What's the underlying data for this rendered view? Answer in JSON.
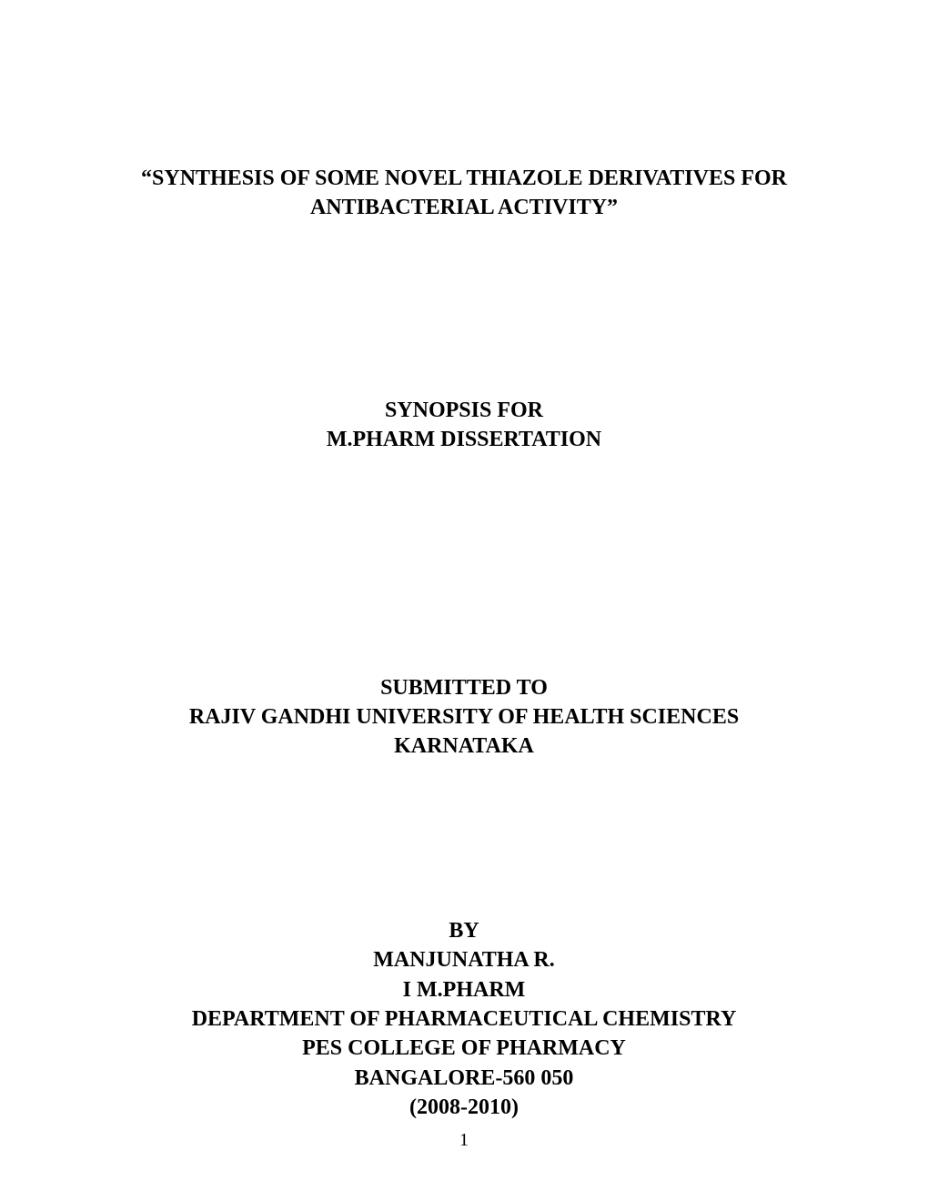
{
  "title": {
    "line1": "“SYNTHESIS OF SOME NOVEL THIAZOLE DERIVATIVES FOR",
    "line2": "ANTIBACTERIAL ACTIVITY”"
  },
  "synopsis": {
    "line1": "SYNOPSIS FOR",
    "line2": "M.PHARM DISSERTATION"
  },
  "submitted": {
    "line1": "SUBMITTED TO",
    "line2": "RAJIV GANDHI UNIVERSITY OF HEALTH SCIENCES",
    "line3": "KARNATAKA"
  },
  "author": {
    "line1": "BY",
    "line2": "MANJUNATHA R.",
    "line3": "I M.PHARM",
    "line4": "DEPARTMENT OF PHARMACEUTICAL CHEMISTRY",
    "line5": "PES COLLEGE OF PHARMACY",
    "line6": "BANGALORE-560 050",
    "line7": "(2008-2010)"
  },
  "pageNumber": "1"
}
